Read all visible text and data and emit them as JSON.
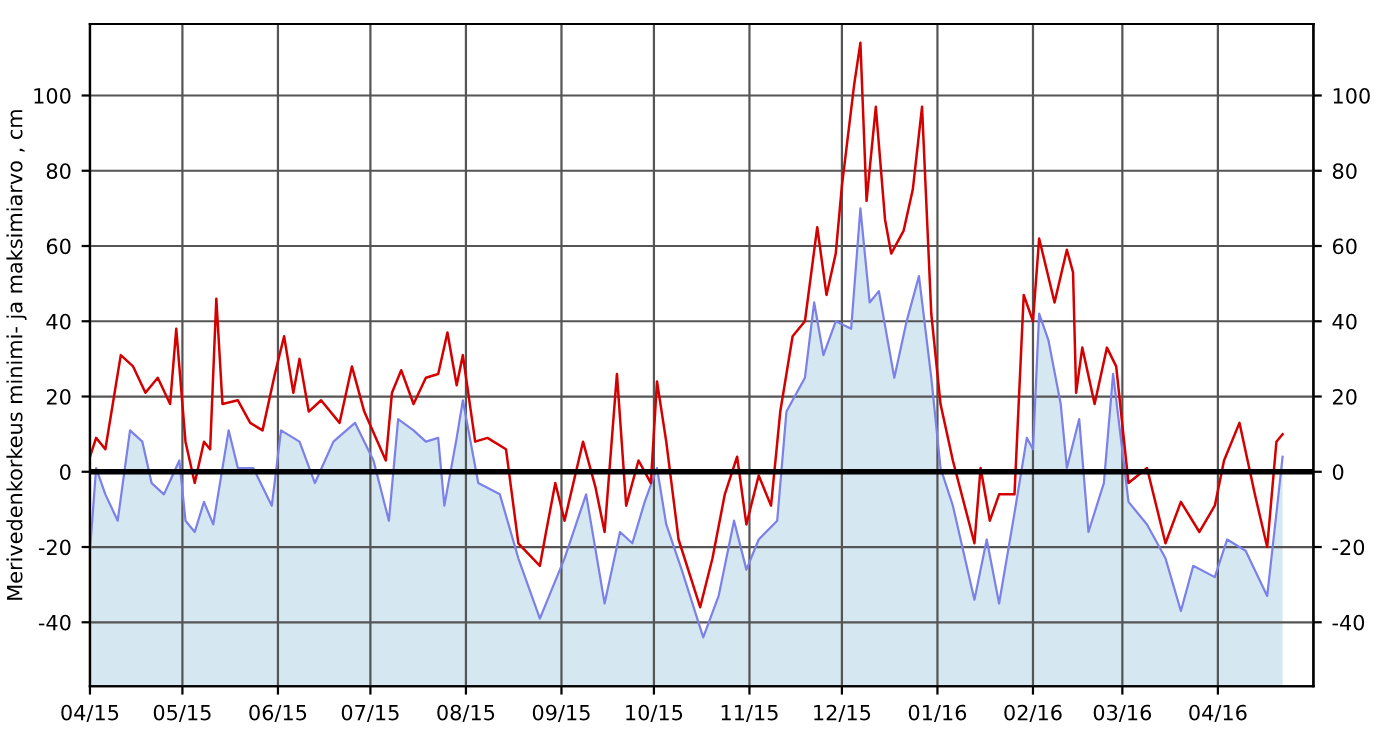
{
  "chart_data": {
    "type": "line",
    "ylabel": "Merivedenkorkeus minimi- ja maksimiarvo , cm",
    "xlim": [
      "2015-04-01",
      "2016-05-02"
    ],
    "ylim": [
      -57,
      119
    ],
    "y2lim": [
      -57,
      119
    ],
    "xticks": [
      {
        "value": "2015-04-01",
        "label": "04/15"
      },
      {
        "value": "2015-05-01",
        "label": "05/15"
      },
      {
        "value": "2015-06-01",
        "label": "06/15"
      },
      {
        "value": "2015-07-01",
        "label": "07/15"
      },
      {
        "value": "2015-08-01",
        "label": "08/15"
      },
      {
        "value": "2015-09-01",
        "label": "09/15"
      },
      {
        "value": "2015-10-01",
        "label": "10/15"
      },
      {
        "value": "2015-11-01",
        "label": "11/15"
      },
      {
        "value": "2015-12-01",
        "label": "12/15"
      },
      {
        "value": "2016-01-01",
        "label": "01/16"
      },
      {
        "value": "2016-02-01",
        "label": "02/16"
      },
      {
        "value": "2016-03-01",
        "label": "03/16"
      },
      {
        "value": "2016-04-01",
        "label": "04/16"
      }
    ],
    "yticks": [
      -40,
      -20,
      0,
      20,
      40,
      60,
      80,
      100
    ],
    "y2ticks": [
      -40,
      -20,
      0,
      20,
      40,
      60,
      80,
      100
    ],
    "grid": true,
    "ref_lines": [
      {
        "axis": "y",
        "value": 0,
        "color": "#000000"
      }
    ],
    "legend": false,
    "series": [
      {
        "type": "area",
        "color": "#d5e7f1",
        "x": [
          "2015-04-01",
          "2015-04-03",
          "2015-04-06",
          "2015-04-10",
          "2015-04-14",
          "2015-04-18",
          "2015-04-21",
          "2015-04-25",
          "2015-04-30",
          "2015-05-02",
          "2015-05-05",
          "2015-05-08",
          "2015-05-11",
          "2015-05-16",
          "2015-05-19",
          "2015-05-24",
          "2015-05-30",
          "2015-06-02",
          "2015-06-08",
          "2015-06-13",
          "2015-06-19",
          "2015-06-26",
          "2015-07-02",
          "2015-07-07",
          "2015-07-10",
          "2015-07-15",
          "2015-07-19",
          "2015-07-23",
          "2015-07-25",
          "2015-07-29",
          "2015-07-31",
          "2015-08-05",
          "2015-08-12",
          "2015-08-18",
          "2015-08-25",
          "2015-08-29",
          "2015-09-02",
          "2015-09-09",
          "2015-09-15",
          "2015-09-20",
          "2015-09-24",
          "2015-09-28",
          "2015-10-02",
          "2015-10-05",
          "2015-10-10",
          "2015-10-17",
          "2015-10-22",
          "2015-10-27",
          "2015-10-31",
          "2015-11-04",
          "2015-11-10",
          "2015-11-13",
          "2015-11-19",
          "2015-11-22",
          "2015-11-25",
          "2015-11-29",
          "2015-12-04",
          "2015-12-07",
          "2015-12-10",
          "2015-12-13",
          "2015-12-18",
          "2015-12-22",
          "2015-12-26",
          "2015-12-30",
          "2016-01-02",
          "2016-01-06",
          "2016-01-13",
          "2016-01-17",
          "2016-01-21",
          "2016-01-26",
          "2016-01-30",
          "2016-02-01",
          "2016-02-03",
          "2016-02-06",
          "2016-02-10",
          "2016-02-12",
          "2016-02-16",
          "2016-02-19",
          "2016-02-24",
          "2016-02-27",
          "2016-03-03",
          "2016-03-09",
          "2016-03-15",
          "2016-03-20",
          "2016-03-24",
          "2016-03-31",
          "2016-04-04",
          "2016-04-10",
          "2016-04-17",
          "2016-04-20",
          "2016-04-22"
        ],
        "values": [
          -21,
          1,
          -6,
          -13,
          11,
          8,
          -3,
          -6,
          3,
          -13,
          -16,
          -8,
          -14,
          11,
          1,
          1,
          -9,
          11,
          8,
          -3,
          8,
          13,
          3,
          -13,
          14,
          11,
          8,
          9,
          -9,
          9,
          19,
          -3,
          -6,
          -23,
          -39,
          -31,
          -23,
          -6,
          -35,
          -16,
          -19,
          -8,
          1,
          -14,
          -26,
          -44,
          -33,
          -13,
          -26,
          -18,
          -13,
          16,
          25,
          45,
          31,
          40,
          38,
          70,
          45,
          48,
          25,
          40,
          52,
          25,
          1,
          -9,
          -34,
          -18,
          -35,
          -11,
          9,
          6,
          42,
          35,
          18,
          1,
          14,
          -16,
          -3,
          26,
          -8,
          -14,
          -23,
          -37,
          -25,
          -28,
          -18,
          -21,
          -33,
          -11,
          4
        ]
      },
      {
        "color": "#d40000",
        "x": [
          "2015-04-01",
          "2015-04-03",
          "2015-04-06",
          "2015-04-11",
          "2015-04-15",
          "2015-04-19",
          "2015-04-23",
          "2015-04-27",
          "2015-04-29",
          "2015-05-02",
          "2015-05-05",
          "2015-05-08",
          "2015-05-10",
          "2015-05-12",
          "2015-05-14",
          "2015-05-19",
          "2015-05-23",
          "2015-05-27",
          "2015-05-31",
          "2015-06-03",
          "2015-06-06",
          "2015-06-08",
          "2015-06-11",
          "2015-06-15",
          "2015-06-21",
          "2015-06-25",
          "2015-06-29",
          "2015-07-06",
          "2015-07-08",
          "2015-07-11",
          "2015-07-15",
          "2015-07-19",
          "2015-07-23",
          "2015-07-26",
          "2015-07-29",
          "2015-07-31",
          "2015-08-04",
          "2015-08-08",
          "2015-08-14",
          "2015-08-18",
          "2015-08-25",
          "2015-08-27",
          "2015-08-30",
          "2015-09-02",
          "2015-09-08",
          "2015-09-12",
          "2015-09-15",
          "2015-09-19",
          "2015-09-22",
          "2015-09-26",
          "2015-09-30",
          "2015-10-02",
          "2015-10-05",
          "2015-10-09",
          "2015-10-16",
          "2015-10-20",
          "2015-10-24",
          "2015-10-28",
          "2015-10-31",
          "2015-11-04",
          "2015-11-08",
          "2015-11-11",
          "2015-11-15",
          "2015-11-19",
          "2015-11-23",
          "2015-11-26",
          "2015-11-29",
          "2015-12-01",
          "2015-12-05",
          "2015-12-07",
          "2015-12-09",
          "2015-12-12",
          "2015-12-15",
          "2015-12-17",
          "2015-12-21",
          "2015-12-24",
          "2015-12-27",
          "2015-12-30",
          "2016-01-02",
          "2016-01-06",
          "2016-01-13",
          "2016-01-15",
          "2016-01-18",
          "2016-01-21",
          "2016-01-26",
          "2016-01-29",
          "2016-02-01",
          "2016-02-03",
          "2016-02-08",
          "2016-02-12",
          "2016-02-14",
          "2016-02-15",
          "2016-02-17",
          "2016-02-21",
          "2016-02-25",
          "2016-02-28",
          "2016-03-03",
          "2016-03-09",
          "2016-03-15",
          "2016-03-20",
          "2016-03-26",
          "2016-03-31",
          "2016-04-03",
          "2016-04-08",
          "2016-04-13",
          "2016-04-17",
          "2016-04-20",
          "2016-04-22"
        ],
        "values": [
          4,
          9,
          6,
          31,
          28,
          21,
          25,
          18,
          38,
          8,
          -3,
          8,
          6,
          46,
          18,
          19,
          13,
          11,
          26,
          36,
          21,
          30,
          16,
          19,
          13,
          28,
          16,
          3,
          21,
          27,
          18,
          25,
          26,
          37,
          23,
          31,
          8,
          9,
          6,
          -19,
          -25,
          -16,
          -3,
          -13,
          8,
          -4,
          -16,
          26,
          -9,
          3,
          -3,
          24,
          8,
          -18,
          -36,
          -23,
          -6,
          4,
          -14,
          -1,
          -9,
          16,
          36,
          40,
          65,
          47,
          58,
          76,
          103,
          114,
          72,
          97,
          67,
          58,
          64,
          75,
          97,
          42,
          18,
          3,
          -19,
          1,
          -13,
          -6,
          -6,
          47,
          40,
          62,
          45,
          59,
          53,
          21,
          33,
          18,
          33,
          28,
          -3,
          1,
          -19,
          -8,
          -16,
          -9,
          3,
          13,
          -6,
          -20,
          8,
          10
        ]
      }
    ]
  }
}
